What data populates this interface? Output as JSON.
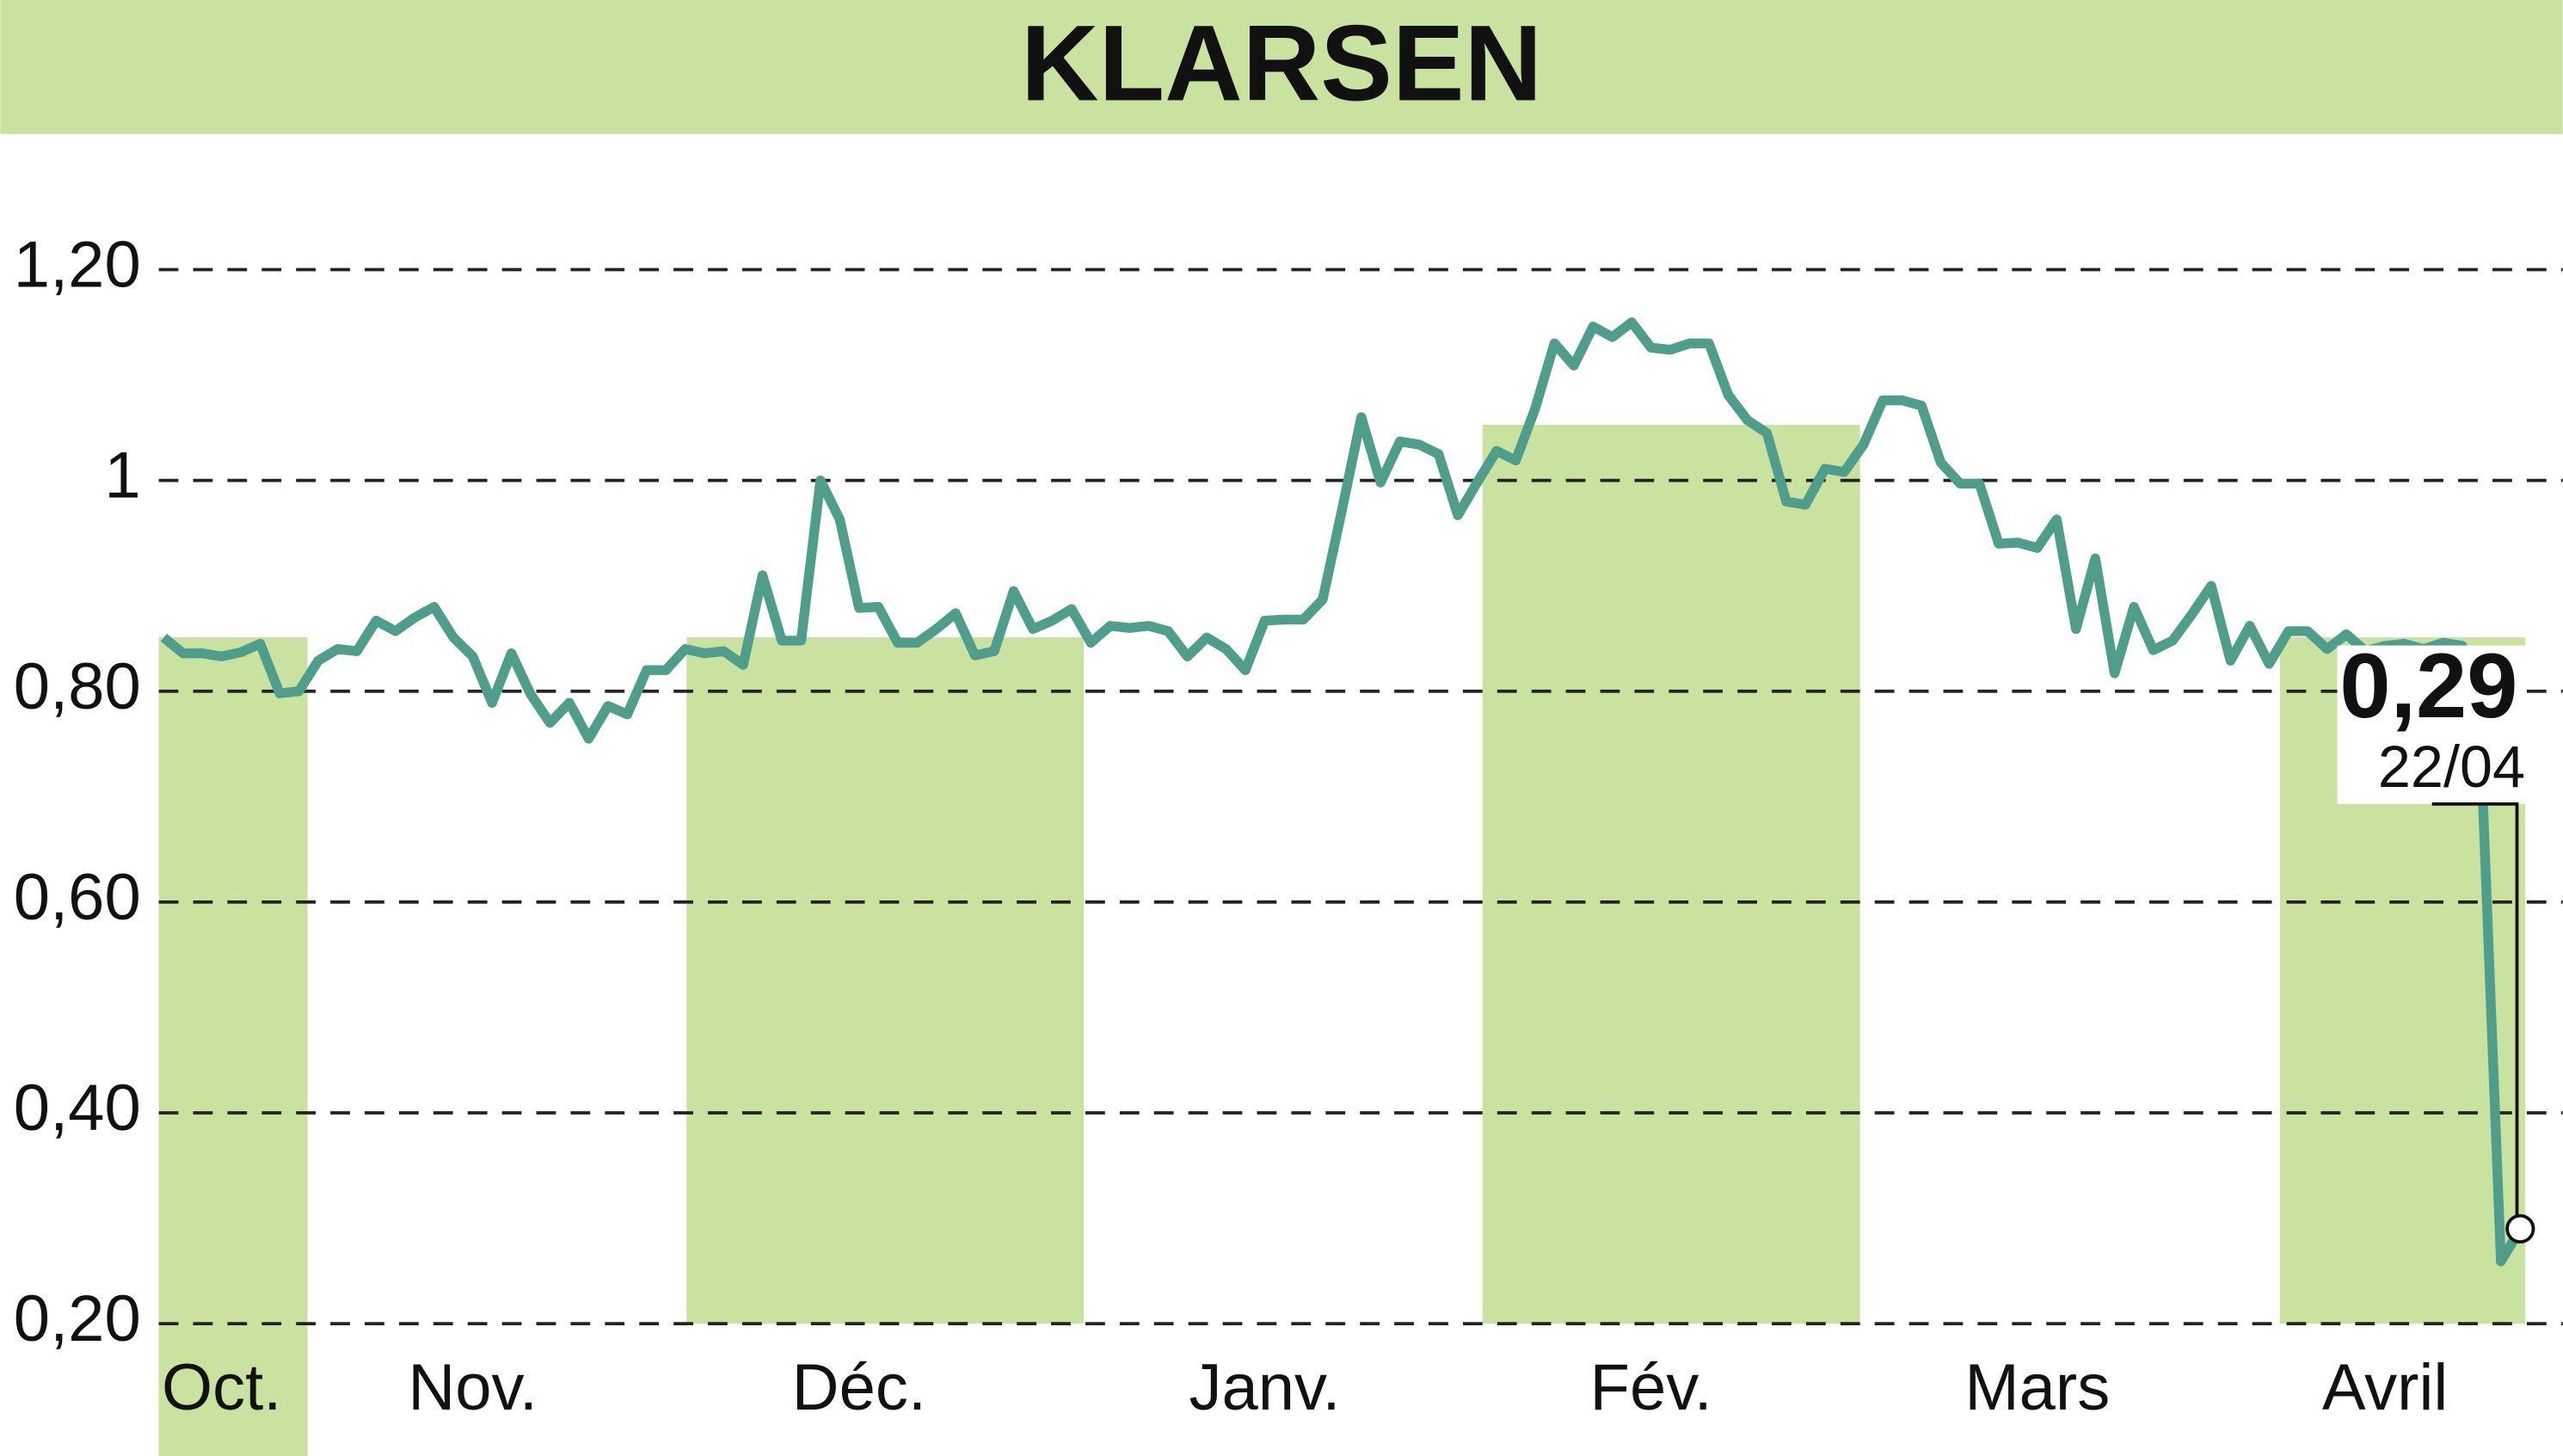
{
  "chart_data": {
    "type": "line",
    "title": "KLARSEN",
    "values": [
      0.851,
      0.836,
      0.836,
      0.833,
      0.837,
      0.845,
      0.798,
      0.8,
      0.829,
      0.84,
      0.838,
      0.867,
      0.857,
      0.87,
      0.88,
      0.851,
      0.833,
      0.789,
      0.836,
      0.797,
      0.77,
      0.789,
      0.755,
      0.786,
      0.778,
      0.82,
      0.82,
      0.84,
      0.836,
      0.838,
      0.825,
      0.91,
      0.848,
      0.848,
      1.0,
      0.963,
      0.879,
      0.88,
      0.846,
      0.846,
      0.859,
      0.874,
      0.834,
      0.838,
      0.895,
      0.859,
      0.867,
      0.878,
      0.846,
      0.862,
      0.86,
      0.862,
      0.857,
      0.833,
      0.851,
      0.84,
      0.82,
      0.867,
      0.868,
      0.868,
      0.887,
      0.972,
      1.06,
      0.998,
      1.037,
      1.034,
      1.025,
      0.967,
      0.998,
      1.028,
      1.019,
      1.068,
      1.13,
      1.109,
      1.146,
      1.136,
      1.15,
      1.126,
      1.124,
      1.13,
      1.13,
      1.081,
      1.057,
      1.045,
      0.98,
      0.977,
      1.011,
      1.008,
      1.034,
      1.076,
      1.076,
      1.071,
      1.017,
      0.997,
      0.997,
      0.94,
      0.941,
      0.936,
      0.963,
      0.859,
      0.926,
      0.817,
      0.88,
      0.839,
      0.848,
      0.873,
      0.9,
      0.829,
      0.862,
      0.826,
      0.857,
      0.857,
      0.84,
      0.854,
      0.838,
      0.843,
      0.845,
      0.84,
      0.846,
      0.843,
      0.727,
      0.259,
      0.29
    ],
    "color": "#4f9e8c",
    "ylim": [
      0.2,
      1.2
    ],
    "yticks": [
      {
        "value": 0.2,
        "label": "0,20"
      },
      {
        "value": 0.4,
        "label": "0,40"
      },
      {
        "value": 0.6,
        "label": "0,60"
      },
      {
        "value": 0.8,
        "label": "0,80"
      },
      1,
      {
        "value": 1.2,
        "label": "1,20"
      }
    ],
    "xlim": [
      0,
      122
    ],
    "xticks": [
      {
        "value": 3,
        "label": "Oct."
      },
      {
        "value": 16,
        "label": "Nov."
      },
      {
        "value": 36,
        "label": "Déc."
      },
      {
        "value": 57,
        "label": "Janv."
      },
      {
        "value": 77,
        "label": "Fév."
      },
      {
        "value": 97,
        "label": "Mars"
      },
      {
        "value": 115,
        "label": "Avril"
      }
    ],
    "grid": true,
    "last_value_label": "0,29",
    "last_date": "22/04"
  }
}
